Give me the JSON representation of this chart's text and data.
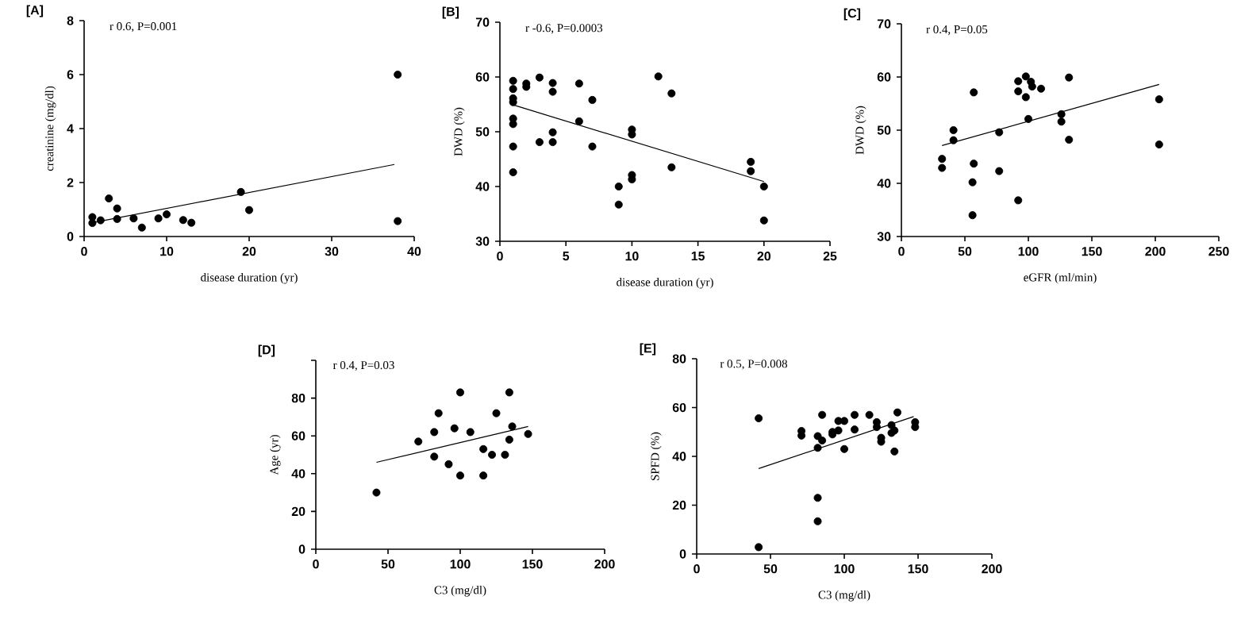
{
  "chart_data": [
    {
      "type": "scatter",
      "title": "[A]",
      "xlabel": "disease duration (yr)",
      "ylabel": "creatinine (mg/dl)",
      "annotations": [
        "r 0.6, P=0.001"
      ],
      "xlim": [
        0,
        40
      ],
      "ylim": [
        0,
        8
      ],
      "xticks": [
        0,
        10,
        20,
        30,
        40
      ],
      "yticks": [
        0,
        2,
        4,
        6,
        8
      ],
      "series": [
        {
          "marker": "circle",
          "color": "#000000",
          "x": [
            1,
            1,
            2,
            3,
            4,
            4,
            6,
            7,
            9,
            10,
            12,
            13,
            19,
            20,
            38,
            38
          ],
          "values": [
            0.72,
            0.5,
            0.6,
            1.41,
            1.04,
            0.65,
            0.67,
            0.33,
            0.67,
            0.82,
            0.61,
            0.51,
            1.65,
            0.98,
            6,
            0.57
          ]
        },
        {
          "type": "line",
          "color": "#000000",
          "x": [
            1,
            37.6
          ],
          "values": [
            0.51,
            2.67
          ]
        }
      ]
    },
    {
      "type": "scatter",
      "title": "[B]",
      "xlabel": "disease duration (yr)",
      "ylabel": "DWD (%)",
      "annotations": [
        "r -0.6, P=0.0003"
      ],
      "xlim": [
        0,
        25
      ],
      "ylim": [
        30,
        70
      ],
      "xticks": [
        0,
        5,
        10,
        15,
        20,
        25
      ],
      "yticks": [
        30,
        40,
        50,
        60,
        70
      ],
      "series": [
        {
          "marker": "circle",
          "color": "#000000",
          "x": [
            1,
            1,
            1,
            1,
            1,
            1,
            1,
            1,
            2,
            2,
            3,
            3,
            4,
            4,
            4,
            4,
            6,
            6,
            7,
            7,
            9,
            9,
            10,
            10,
            10,
            10,
            12,
            13,
            13,
            19,
            19,
            20,
            20
          ],
          "values": [
            59.3,
            57.8,
            56.1,
            55.4,
            52.4,
            51.4,
            47.3,
            42.6,
            58.8,
            58.2,
            59.9,
            48.1,
            58.9,
            57.3,
            49.9,
            48.1,
            58.8,
            51.9,
            55.8,
            47.3,
            40,
            36.7,
            50.4,
            49.5,
            42.1,
            41.3,
            60.1,
            57,
            43.5,
            44.5,
            42.8,
            40,
            33.8
          ]
        },
        {
          "type": "line",
          "color": "#000000",
          "x": [
            1,
            20
          ],
          "values": [
            54.9,
            40.9
          ]
        }
      ]
    },
    {
      "type": "scatter",
      "title": "[C]",
      "xlabel": "eGFR (ml/min)",
      "ylabel": "DWD (%)",
      "annotations": [
        "r 0.4, P=0.05"
      ],
      "xlim": [
        0,
        250
      ],
      "ylim": [
        30,
        70
      ],
      "xticks": [
        0,
        50,
        100,
        150,
        200,
        250
      ],
      "yticks": [
        30,
        40,
        50,
        60,
        70
      ],
      "series": [
        {
          "marker": "circle",
          "color": "#000000",
          "x": [
            32,
            32,
            41,
            41,
            57,
            57,
            56,
            56,
            77,
            77,
            92,
            92,
            92,
            98,
            98,
            100,
            102,
            103,
            110,
            126,
            126,
            132,
            132,
            203,
            203
          ],
          "values": [
            44.6,
            42.9,
            50,
            48.1,
            57.1,
            43.7,
            40.2,
            34,
            49.6,
            42.3,
            59.2,
            57.3,
            36.8,
            60.1,
            56.2,
            52.1,
            59.1,
            58.2,
            57.8,
            53,
            51.6,
            59.9,
            48.2,
            55.8,
            47.3
          ]
        },
        {
          "type": "line",
          "color": "#000000",
          "x": [
            32,
            203
          ],
          "values": [
            47.1,
            58.6
          ]
        }
      ]
    },
    {
      "type": "scatter",
      "title": "[D]",
      "xlabel": "C3 (mg/dl)",
      "ylabel": "Age (yr)",
      "annotations": [
        "r 0.4, P=0.03"
      ],
      "xlim": [
        0,
        200
      ],
      "ylim": [
        0,
        100
      ],
      "xticks": [
        0,
        50,
        100,
        150,
        200
      ],
      "yticks": [
        0,
        20,
        40,
        60,
        80,
        {
          "value": 100,
          "label": null
        }
      ],
      "series": [
        {
          "marker": "circle",
          "color": "#000000",
          "x": [
            42,
            71,
            82,
            82,
            85,
            92,
            96,
            100,
            100,
            107,
            116,
            116,
            122,
            125,
            131,
            134,
            134,
            136,
            147
          ],
          "values": [
            30,
            57,
            62,
            49,
            72,
            45,
            64,
            83,
            39,
            62,
            53,
            39,
            50,
            72,
            50,
            83,
            58,
            65,
            61
          ]
        },
        {
          "type": "line",
          "color": "#000000",
          "x": [
            42,
            147
          ],
          "values": [
            46,
            65
          ]
        }
      ]
    },
    {
      "type": "scatter",
      "title": "[E]",
      "xlabel": "C3 (mg/dl)",
      "ylabel": "SPFD (%)",
      "annotations": [
        "r 0.5, P=0.008"
      ],
      "xlim": [
        0,
        200
      ],
      "ylim": [
        0,
        80
      ],
      "xticks": [
        0,
        50,
        100,
        150,
        200
      ],
      "yticks": [
        0,
        20,
        40,
        60,
        80
      ],
      "series": [
        {
          "marker": "circle",
          "color": "#000000",
          "x": [
            42,
            42,
            71,
            71,
            82,
            82,
            82,
            82,
            85,
            85,
            92,
            92,
            96,
            96,
            100,
            100,
            107,
            107,
            117,
            122,
            122,
            125,
            125,
            132,
            132,
            134,
            134,
            136,
            148,
            148
          ],
          "values": [
            55.6,
            2.8,
            50.4,
            48.5,
            48.3,
            43.5,
            23,
            13.4,
            46.5,
            57,
            50,
            49,
            50.6,
            54.5,
            54.5,
            43,
            57,
            51,
            57,
            54,
            52,
            47.6,
            46,
            52.8,
            49.6,
            50.6,
            42,
            58,
            54,
            52
          ]
        },
        {
          "type": "line",
          "color": "#000000",
          "x": [
            42,
            147
          ],
          "values": [
            35,
            56.3
          ]
        }
      ]
    }
  ]
}
